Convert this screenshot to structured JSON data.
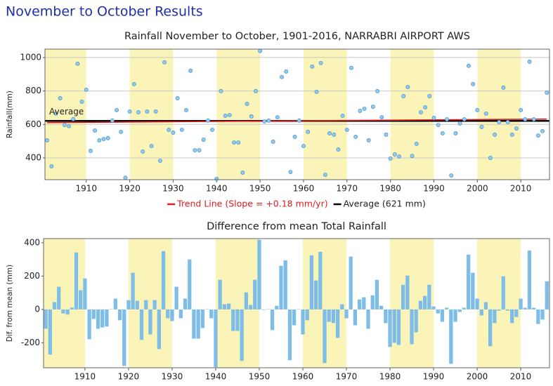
{
  "page_title": "November to October Results",
  "chart_data": [
    {
      "type": "scatter",
      "title": "Rainfall November to October, 1901-2016, NARRABRI AIRPORT AWS",
      "ylabel": "Rainfall(mm)",
      "x": [
        1901,
        1902,
        1903,
        1904,
        1905,
        1906,
        1907,
        1908,
        1909,
        1910,
        1911,
        1912,
        1913,
        1914,
        1915,
        1916,
        1917,
        1918,
        1919,
        1920,
        1921,
        1922,
        1923,
        1924,
        1925,
        1926,
        1927,
        1928,
        1929,
        1930,
        1931,
        1932,
        1933,
        1934,
        1935,
        1936,
        1937,
        1938,
        1939,
        1940,
        1941,
        1942,
        1943,
        1944,
        1945,
        1946,
        1947,
        1948,
        1949,
        1950,
        1951,
        1952,
        1953,
        1954,
        1955,
        1956,
        1957,
        1958,
        1959,
        1960,
        1961,
        1962,
        1963,
        1964,
        1965,
        1966,
        1967,
        1968,
        1969,
        1970,
        1971,
        1972,
        1973,
        1974,
        1975,
        1976,
        1977,
        1978,
        1979,
        1980,
        1981,
        1982,
        1983,
        1984,
        1985,
        1986,
        1987,
        1988,
        1989,
        1990,
        1991,
        1992,
        1993,
        1994,
        1995,
        1996,
        1997,
        1998,
        1999,
        2000,
        2001,
        2002,
        2003,
        2004,
        2005,
        2006,
        2007,
        2008,
        2009,
        2010,
        2011,
        2012,
        2013,
        2014,
        2015,
        2016
      ],
      "values": [
        505,
        350,
        665,
        757,
        597,
        590,
        632,
        963,
        736,
        807,
        442,
        564,
        505,
        513,
        518,
        623,
        686,
        556,
        282,
        677,
        841,
        673,
        438,
        677,
        471,
        677,
        383,
        971,
        568,
        551,
        757,
        568,
        686,
        921,
        446,
        446,
        509,
        623,
        568,
        275,
        799,
        652,
        656,
        492,
        492,
        312,
        723,
        648,
        799,
        1039,
        618,
        623,
        497,
        643,
        883,
        916,
        316,
        526,
        623,
        471,
        556,
        946,
        795,
        967,
        299,
        547,
        539,
        450,
        652,
        568,
        938,
        526,
        681,
        694,
        505,
        706,
        799,
        643,
        539,
        396,
        421,
        408,
        769,
        824,
        412,
        484,
        673,
        702,
        769,
        639,
        597,
        547,
        631,
        295,
        547,
        606,
        631,
        950,
        841,
        686,
        585,
        665,
        400,
        539,
        614,
        820,
        614,
        539,
        576,
        686,
        631,
        975,
        631,
        534,
        560,
        790
      ],
      "color": "#8ecbf0",
      "band_color": "#fbf4b8",
      "xlim": [
        1900.5,
        2016.6
      ],
      "xticks": [
        1910,
        1920,
        1930,
        1940,
        1950,
        1960,
        1970,
        1980,
        1990,
        2000,
        2010
      ],
      "ylim": [
        270,
        1050
      ],
      "yticks": [
        400,
        600,
        800,
        1000
      ],
      "grid": true,
      "trend": {
        "name": "Trend Line (Slope = +0.18 mm/yr)",
        "color": "#e31a1c",
        "x": [
          1901,
          2016
        ],
        "values": [
          611,
          632
        ]
      },
      "average": {
        "name": "Average (621 mm)",
        "color": "#000000",
        "value": 621
      },
      "annotation": "Average"
    },
    {
      "type": "bar",
      "title": "Difference from mean Total Rainfall",
      "ylabel": "Dif. from mean (mm)",
      "x": [
        1901,
        1902,
        1903,
        1904,
        1905,
        1906,
        1907,
        1908,
        1909,
        1910,
        1911,
        1912,
        1913,
        1914,
        1915,
        1916,
        1917,
        1918,
        1919,
        1920,
        1921,
        1922,
        1923,
        1924,
        1925,
        1926,
        1927,
        1928,
        1929,
        1930,
        1931,
        1932,
        1933,
        1934,
        1935,
        1936,
        1937,
        1938,
        1939,
        1940,
        1941,
        1942,
        1943,
        1944,
        1945,
        1946,
        1947,
        1948,
        1949,
        1950,
        1951,
        1952,
        1953,
        1954,
        1955,
        1956,
        1957,
        1958,
        1959,
        1960,
        1961,
        1962,
        1963,
        1964,
        1965,
        1966,
        1967,
        1968,
        1969,
        1970,
        1971,
        1972,
        1973,
        1974,
        1975,
        1976,
        1977,
        1978,
        1979,
        1980,
        1981,
        1982,
        1983,
        1984,
        1985,
        1986,
        1987,
        1988,
        1989,
        1990,
        1991,
        1992,
        1993,
        1994,
        1995,
        1996,
        1997,
        1998,
        1999,
        2000,
        2001,
        2002,
        2003,
        2004,
        2005,
        2006,
        2007,
        2008,
        2009,
        2010,
        2011,
        2012,
        2013,
        2014,
        2015,
        2016
      ],
      "values": [
        -116,
        -271,
        44,
        136,
        -24,
        -31,
        11,
        342,
        115,
        186,
        -179,
        -57,
        -116,
        -108,
        -103,
        2,
        65,
        -65,
        -339,
        56,
        220,
        52,
        -183,
        56,
        -150,
        56,
        -238,
        350,
        -53,
        -70,
        136,
        -53,
        65,
        300,
        -175,
        -175,
        -112,
        2,
        -53,
        -346,
        178,
        31,
        35,
        -129,
        -129,
        -309,
        102,
        27,
        178,
        418,
        -3,
        2,
        -124,
        22,
        262,
        295,
        -305,
        -95,
        2,
        -150,
        -65,
        325,
        174,
        346,
        -322,
        -74,
        -82,
        -171,
        31,
        -53,
        317,
        -95,
        60,
        73,
        -116,
        85,
        178,
        22,
        -82,
        -225,
        -200,
        -213,
        148,
        203,
        -209,
        -137,
        52,
        81,
        148,
        18,
        -24,
        -74,
        10,
        -326,
        -74,
        -15,
        10,
        329,
        220,
        65,
        -36,
        44,
        -221,
        -82,
        -7,
        199,
        -7,
        -82,
        -45,
        65,
        10,
        354,
        10,
        -87,
        -61,
        169
      ],
      "color": "#7dbde8",
      "band_color": "#fbf4b8",
      "xlim": [
        1900.5,
        2016.6
      ],
      "xticks": [
        1910,
        1920,
        1930,
        1940,
        1950,
        1960,
        1970,
        1980,
        1990,
        2000,
        2010
      ],
      "ylim": [
        -350,
        425
      ],
      "yticks": [
        -200,
        0,
        200,
        400
      ],
      "grid": false
    }
  ]
}
